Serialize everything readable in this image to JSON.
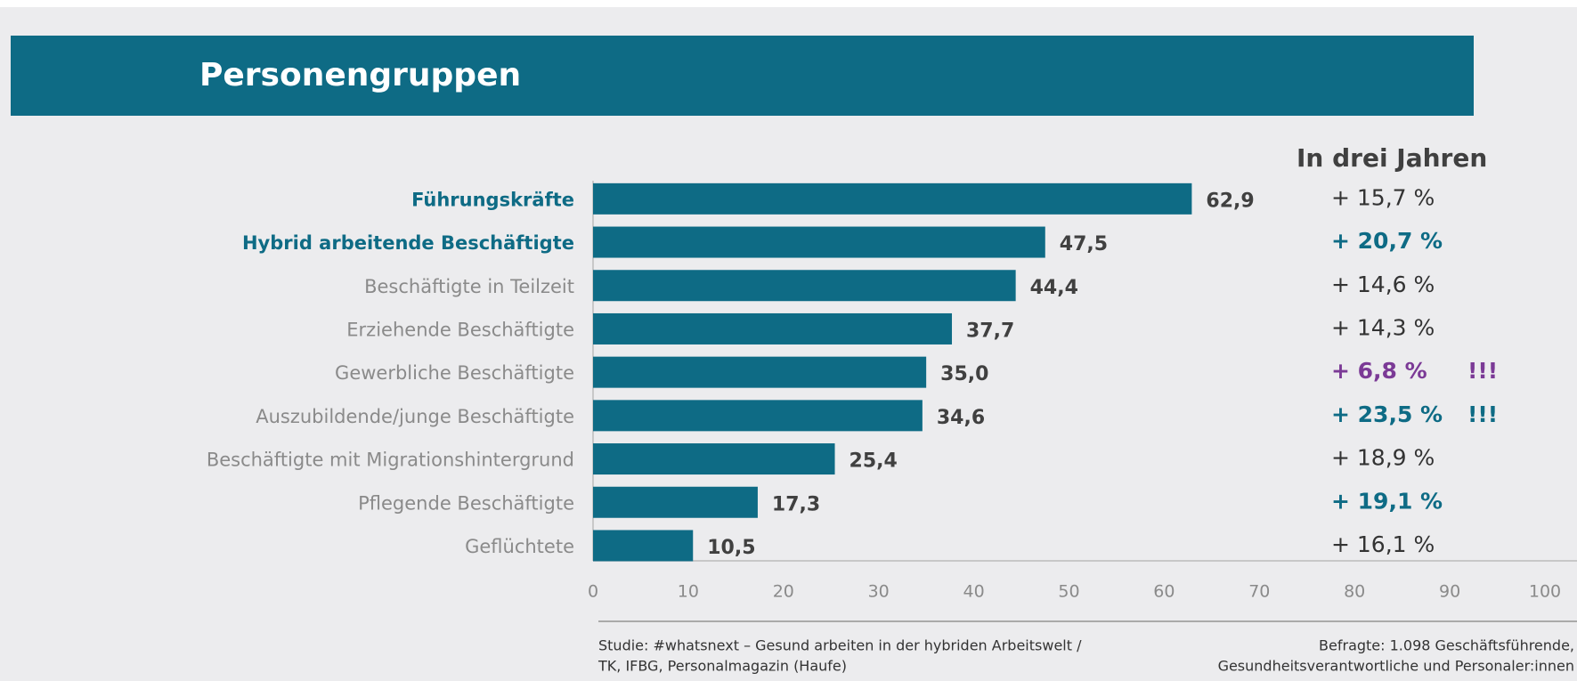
{
  "chart_data": {
    "type": "hbar",
    "title": "Personengruppen",
    "categories": [
      "Führungskräfte",
      "Hybrid arbeitende Beschäftigte",
      "Beschäftigte in Teilzeit",
      "Erziehende Beschäftigte",
      "Gewerbliche Beschäftigte",
      "Auszubildende/junge Beschäftigte",
      "Beschäftigte mit Migrationshintergrund",
      "Pflegende Beschäftigte",
      "Geflüchtete"
    ],
    "category_colors": [
      "#0e6b85",
      "#0e6b85",
      "#8a8a8a",
      "#8a8a8a",
      "#8a8a8a",
      "#8a8a8a",
      "#8a8a8a",
      "#8a8a8a",
      "#8a8a8a"
    ],
    "category_weights": [
      "bold",
      "bold",
      "normal",
      "normal",
      "normal",
      "normal",
      "normal",
      "normal",
      "normal"
    ],
    "values": [
      62.9,
      47.5,
      44.4,
      37.7,
      35.0,
      34.6,
      25.4,
      17.3,
      10.5
    ],
    "value_labels": [
      "62,9",
      "47,5",
      "44,4",
      "37,7",
      "35,0",
      "34,6",
      "25,4",
      "17,3",
      "10,5"
    ],
    "color": "#0e6b85",
    "xlim": [
      0,
      100
    ],
    "xticks": [
      0,
      10,
      20,
      30,
      40,
      50,
      60,
      70,
      80,
      90,
      100
    ],
    "column_title": "In drei Jahren",
    "changes": [
      "+ 15,7 %",
      "+ 20,7 %",
      "+ 14,6 %",
      "+ 14,3 %",
      "+ 6,8 %",
      "+ 23,5 %",
      "+ 18,9 %",
      "+ 19,1 %",
      "+ 16,1 %"
    ],
    "change_colors": [
      "#333333",
      "#0e6b85",
      "#333333",
      "#333333",
      "#7b3a96",
      "#0e6b85",
      "#333333",
      "#0e6b85",
      "#333333"
    ],
    "change_weights": [
      "normal",
      "bold",
      "normal",
      "normal",
      "bold",
      "bold",
      "normal",
      "bold",
      "normal"
    ],
    "alerts": [
      null,
      null,
      null,
      null,
      "!!!",
      "!!!",
      null,
      null,
      null
    ],
    "alert_colors": [
      null,
      null,
      null,
      null,
      "#7b3a96",
      "#0e6b85",
      null,
      null,
      null
    ],
    "source": [
      "Studie: #whatsnext – Gesund arbeiten in der hybriden Arbeitswelt /",
      "TK, IFBG, Personalmagazin (Haufe)"
    ],
    "respondents": [
      "Befragte: 1.098 Geschäftsführende,",
      "Gesundheitsverantwortliche und Personaler:innen"
    ]
  }
}
